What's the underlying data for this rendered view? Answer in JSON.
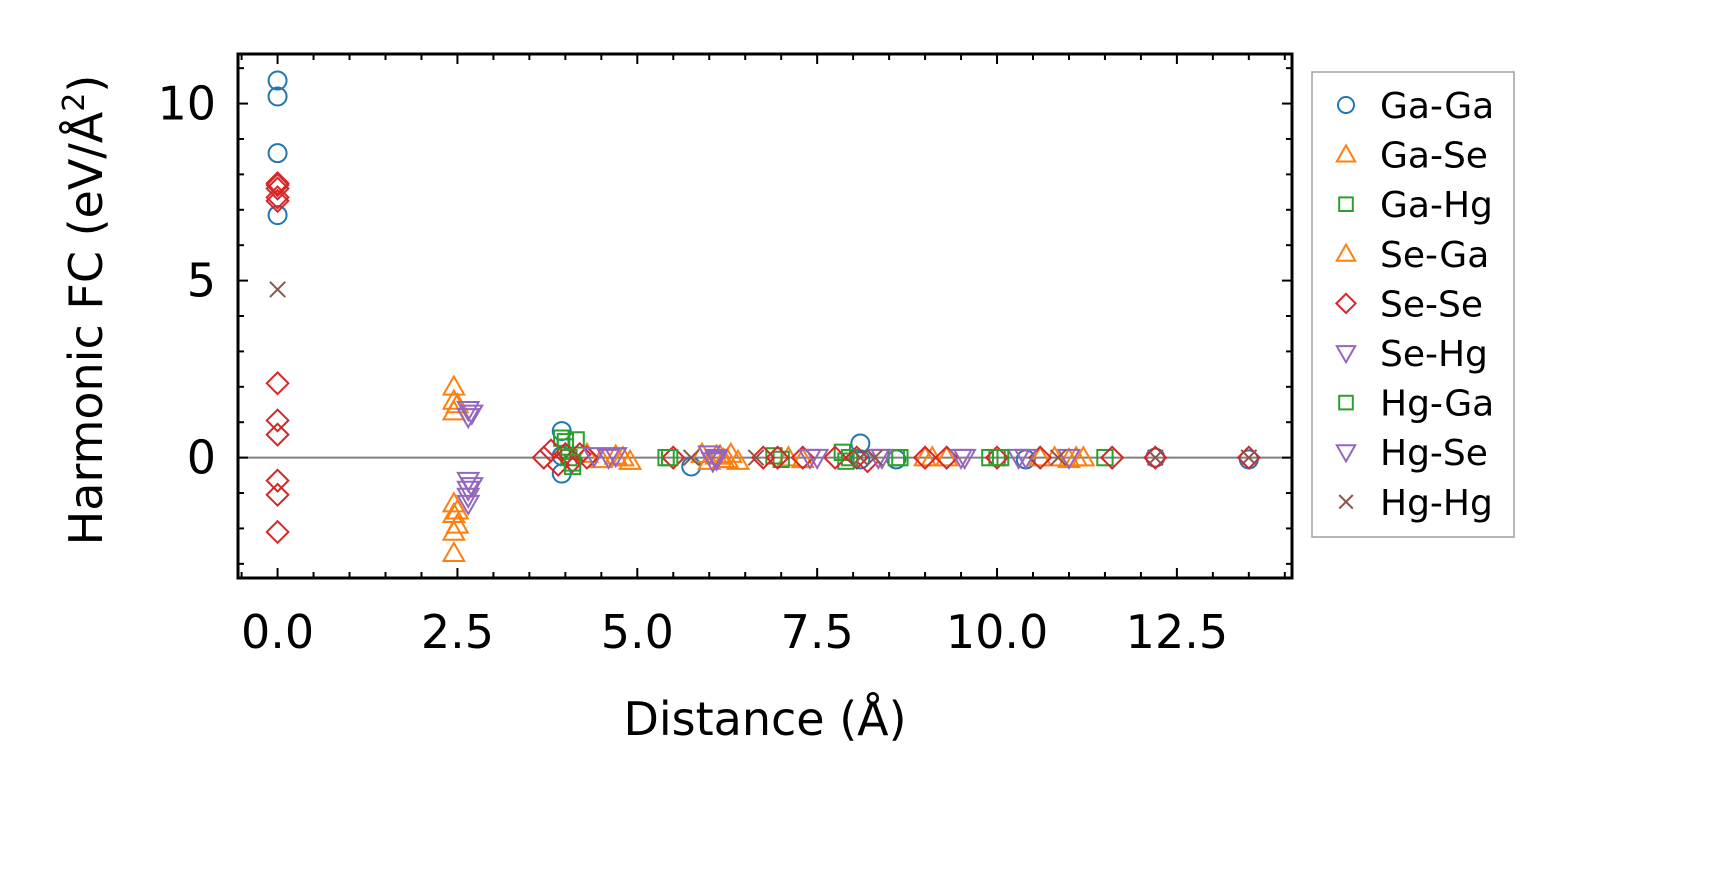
{
  "chart_data": {
    "type": "scatter",
    "title": "",
    "xlabel": "Distance (Å)",
    "ylabel_main": "Harmonic FC (eV/Å",
    "ylabel_sup": "2",
    "ylabel_close": ")",
    "xlim": [
      -0.55,
      14.1
    ],
    "ylim": [
      -3.4,
      11.4
    ],
    "xticks": [
      {
        "value": 0.0,
        "label": "0.0"
      },
      {
        "value": 2.5,
        "label": "2.5"
      },
      {
        "value": 5.0,
        "label": "5.0"
      },
      {
        "value": 7.5,
        "label": "7.5"
      },
      {
        "value": 10.0,
        "label": "10.0"
      },
      {
        "value": 12.5,
        "label": "12.5"
      }
    ],
    "yticks": [
      {
        "value": 0,
        "label": "0"
      },
      {
        "value": 5,
        "label": "5"
      },
      {
        "value": 10,
        "label": "10"
      }
    ],
    "zero_line": 0,
    "legend_position": "outside-right",
    "series": [
      {
        "name": "Ga-Ga",
        "marker": "circle",
        "color": "#1f77b4",
        "x": [
          0,
          0,
          0,
          0,
          3.95,
          3.95,
          3.95,
          5.75,
          8.1,
          8.1,
          8.6,
          10.4,
          12.2,
          13.5
        ],
        "y": [
          10.65,
          10.2,
          8.6,
          6.85,
          0.75,
          0.05,
          -0.45,
          -0.25,
          0.4,
          -0.05,
          -0.05,
          -0.05,
          0,
          -0.05
        ]
      },
      {
        "name": "Ga-Se",
        "marker": "triangle-up",
        "color": "#ff7f0e",
        "x": [
          2.45,
          2.45,
          2.45,
          2.45,
          2.45,
          2.45,
          2.45,
          4.3,
          4.5,
          4.7,
          4.9,
          5.9,
          6.0,
          6.1,
          6.2,
          6.3,
          6.4,
          7.1,
          7.3,
          9.0,
          9.3,
          10.8,
          11.0,
          11.2
        ],
        "y": [
          2.0,
          1.6,
          1.3,
          -1.3,
          -1.6,
          -2.1,
          -2.7,
          0.1,
          -0.05,
          0.05,
          -0.1,
          0.1,
          -0.1,
          0.05,
          -0.05,
          0.1,
          -0.1,
          0.0,
          -0.05,
          0.0,
          0.0,
          0.0,
          -0.05,
          0.0
        ]
      },
      {
        "name": "Ga-Hg",
        "marker": "square",
        "color": "#2ca02c",
        "x": [
          3.95,
          4.0,
          4.05,
          4.1,
          4.15,
          5.4,
          6.9,
          7.0,
          7.85,
          7.9,
          8.65,
          9.9,
          10.0,
          11.5
        ],
        "y": [
          0.55,
          0.3,
          0.0,
          -0.25,
          0.5,
          0.0,
          0.05,
          -0.05,
          0.15,
          -0.1,
          0.0,
          0.0,
          0.0,
          0.0
        ]
      },
      {
        "name": "Se-Ga",
        "marker": "triangle-up",
        "color": "#ff7f0e",
        "x": [
          2.5,
          2.5,
          2.5,
          4.8,
          6.15,
          6.25,
          9.1,
          10.6,
          11.1
        ],
        "y": [
          1.5,
          -1.5,
          -1.9,
          0.0,
          0.05,
          -0.05,
          0.0,
          0.0,
          0.0
        ]
      },
      {
        "name": "Se-Se",
        "marker": "diamond",
        "color": "#d62728",
        "x": [
          0,
          0,
          0,
          0,
          0,
          0,
          0,
          0,
          0,
          0,
          0,
          3.7,
          3.8,
          3.9,
          4.0,
          4.1,
          4.2,
          4.3,
          5.5,
          6.75,
          6.95,
          7.3,
          7.75,
          8.05,
          8.2,
          9.0,
          9.3,
          10.0,
          10.6,
          11.6,
          12.2,
          13.5
        ],
        "y": [
          7.75,
          7.6,
          7.25,
          2.1,
          1.05,
          0.65,
          -0.65,
          -1.05,
          -2.1,
          7.7,
          7.35,
          0.0,
          0.2,
          -0.2,
          0.1,
          -0.1,
          0.1,
          0.0,
          0.0,
          0.0,
          0.0,
          0.0,
          0.0,
          0.0,
          -0.1,
          0.0,
          0.0,
          0.0,
          0.0,
          0.0,
          0.0,
          0.0
        ]
      },
      {
        "name": "Se-Hg",
        "marker": "triangle-down",
        "color": "#9467bd",
        "x": [
          2.65,
          2.65,
          2.65,
          2.65,
          2.65,
          2.65,
          4.4,
          4.7,
          6.0,
          6.05,
          6.1,
          7.4,
          8.35,
          9.55,
          10.3,
          11.0
        ],
        "y": [
          1.35,
          1.15,
          -0.65,
          -0.9,
          -1.1,
          -1.3,
          0.05,
          0.05,
          0.1,
          -0.1,
          0.0,
          0.0,
          0.0,
          0.0,
          0.0,
          0.0
        ]
      },
      {
        "name": "Hg-Ga",
        "marker": "square",
        "color": "#2ca02c",
        "x": [
          4.0,
          4.1,
          5.45,
          7.95,
          8.6,
          10.05
        ],
        "y": [
          0.45,
          -0.15,
          0.0,
          0.0,
          0.0,
          0.0
        ]
      },
      {
        "name": "Hg-Se",
        "marker": "triangle-down",
        "color": "#9467bd",
        "x": [
          2.7,
          2.7,
          4.6,
          6.1,
          7.5,
          8.4,
          9.5,
          10.4
        ],
        "y": [
          1.25,
          -0.8,
          0.0,
          -0.05,
          0.0,
          0.0,
          0.0,
          0.0
        ]
      },
      {
        "name": "Hg-Hg",
        "marker": "x",
        "color": "#8c564b",
        "x": [
          0,
          5.75,
          6.65,
          8.1,
          8.3,
          10.85,
          12.2,
          13.5
        ],
        "y": [
          4.75,
          0.0,
          0.0,
          0.0,
          0.0,
          0.0,
          0.0,
          0.0
        ]
      }
    ]
  }
}
